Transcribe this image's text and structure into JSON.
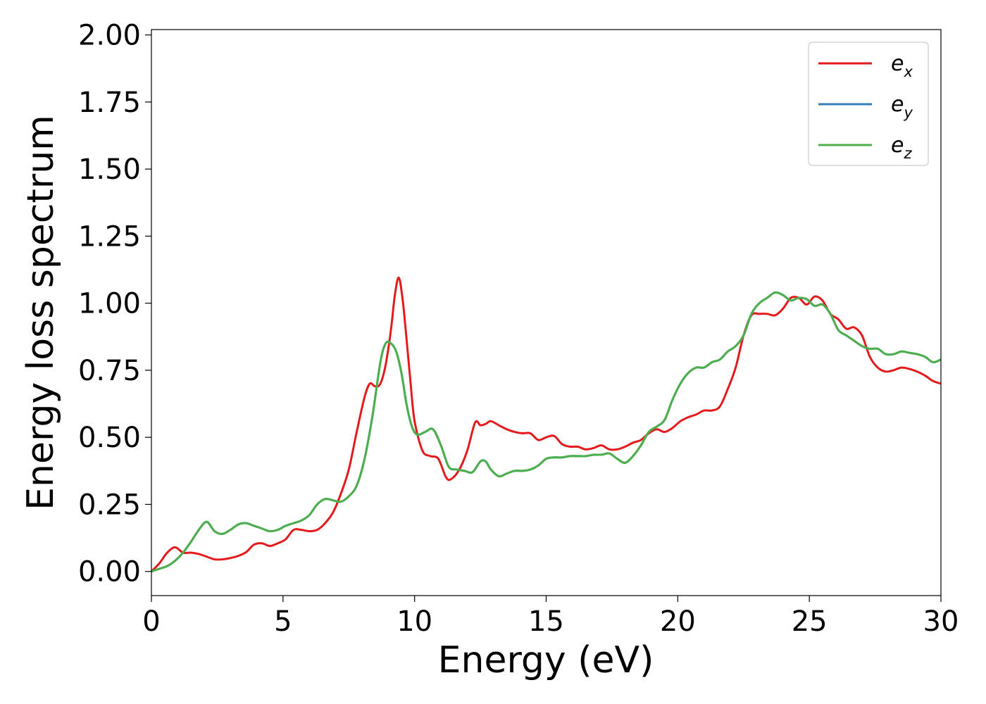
{
  "chart_data": {
    "type": "line",
    "xlabel": "Energy (eV)",
    "ylabel": "Energy loss spectrum",
    "xlim": [
      0,
      30
    ],
    "ylim": [
      -0.09,
      2.02
    ],
    "x_ticks": [
      "0",
      "5",
      "10",
      "15",
      "20",
      "25",
      "30"
    ],
    "x_tick_values": [
      0,
      5,
      10,
      15,
      20,
      25,
      30
    ],
    "y_ticks": [
      "0.00",
      "0.25",
      "0.50",
      "0.75",
      "1.00",
      "1.25",
      "1.50",
      "1.75",
      "2.00"
    ],
    "y_tick_values": [
      0,
      0.25,
      0.5,
      0.75,
      1.0,
      1.25,
      1.5,
      1.75,
      2.0
    ],
    "grid": false,
    "legend_position": "top-right",
    "series": [
      {
        "name_main": "e",
        "name_sub": "x",
        "color": "#e41a1c",
        "x": [
          0,
          0.3,
          0.6,
          0.9,
          1.2,
          1.5,
          1.8,
          2.1,
          2.4,
          2.7,
          3.0,
          3.3,
          3.6,
          3.9,
          4.2,
          4.5,
          4.8,
          5.1,
          5.4,
          5.7,
          6.0,
          6.3,
          6.6,
          6.9,
          7.2,
          7.5,
          7.8,
          8.1,
          8.3,
          8.5,
          8.7,
          8.9,
          9.1,
          9.25,
          9.4,
          9.55,
          9.7,
          9.85,
          10.0,
          10.3,
          10.6,
          10.9,
          11.2,
          11.4,
          11.7,
          12.0,
          12.3,
          12.5,
          12.7,
          12.9,
          13.2,
          13.5,
          13.8,
          14.1,
          14.4,
          14.7,
          15.0,
          15.3,
          15.6,
          15.9,
          16.2,
          16.5,
          16.8,
          17.1,
          17.4,
          17.7,
          18.0,
          18.3,
          18.6,
          18.9,
          19.2,
          19.5,
          19.8,
          20.1,
          20.4,
          20.7,
          21.0,
          21.3,
          21.6,
          21.9,
          22.2,
          22.5,
          22.8,
          23.1,
          23.4,
          23.7,
          24.0,
          24.3,
          24.6,
          24.9,
          25.2,
          25.5,
          25.8,
          26.1,
          26.4,
          26.7,
          27.0,
          27.3,
          27.6,
          27.9,
          28.2,
          28.5,
          28.8,
          29.1,
          29.4,
          29.7,
          30.0
        ],
        "y": [
          0.0,
          0.03,
          0.07,
          0.09,
          0.07,
          0.07,
          0.065,
          0.055,
          0.045,
          0.045,
          0.05,
          0.058,
          0.072,
          0.1,
          0.105,
          0.095,
          0.105,
          0.12,
          0.155,
          0.155,
          0.15,
          0.155,
          0.18,
          0.22,
          0.29,
          0.38,
          0.52,
          0.65,
          0.7,
          0.69,
          0.7,
          0.77,
          0.9,
          1.03,
          1.095,
          1.01,
          0.86,
          0.7,
          0.56,
          0.45,
          0.43,
          0.42,
          0.35,
          0.345,
          0.38,
          0.45,
          0.555,
          0.545,
          0.55,
          0.56,
          0.545,
          0.53,
          0.52,
          0.515,
          0.515,
          0.49,
          0.5,
          0.505,
          0.475,
          0.465,
          0.465,
          0.455,
          0.46,
          0.47,
          0.455,
          0.455,
          0.465,
          0.48,
          0.49,
          0.515,
          0.53,
          0.52,
          0.535,
          0.56,
          0.575,
          0.585,
          0.6,
          0.6,
          0.615,
          0.68,
          0.76,
          0.88,
          0.955,
          0.96,
          0.96,
          0.955,
          0.98,
          1.02,
          1.02,
          0.995,
          1.025,
          1.01,
          0.96,
          0.94,
          0.905,
          0.91,
          0.88,
          0.8,
          0.76,
          0.745,
          0.75,
          0.76,
          0.755,
          0.745,
          0.73,
          0.71,
          0.7
        ]
      },
      {
        "name_main": "e",
        "name_sub": "y",
        "color": "#377eb8",
        "x": [
          0,
          0.3,
          0.6,
          0.9,
          1.2,
          1.5,
          1.8,
          2.1,
          2.4,
          2.7,
          3.0,
          3.3,
          3.6,
          3.9,
          4.2,
          4.5,
          4.8,
          5.1,
          5.4,
          5.7,
          6.0,
          6.3,
          6.6,
          6.9,
          7.2,
          7.5,
          7.8,
          8.1,
          8.4,
          8.7,
          8.9,
          9.1,
          9.3,
          9.5,
          9.7,
          9.9,
          10.1,
          10.4,
          10.7,
          11.0,
          11.3,
          11.6,
          11.9,
          12.2,
          12.5,
          12.7,
          12.9,
          13.2,
          13.5,
          13.8,
          14.1,
          14.4,
          14.7,
          15.0,
          15.3,
          15.6,
          15.9,
          16.2,
          16.5,
          16.8,
          17.1,
          17.4,
          17.7,
          18.0,
          18.3,
          18.6,
          18.9,
          19.2,
          19.5,
          19.8,
          20.1,
          20.4,
          20.7,
          21.0,
          21.3,
          21.6,
          21.9,
          22.2,
          22.5,
          22.8,
          23.1,
          23.4,
          23.7,
          24.0,
          24.3,
          24.6,
          24.9,
          25.2,
          25.5,
          25.8,
          26.1,
          26.4,
          26.7,
          27.0,
          27.3,
          27.6,
          27.9,
          28.2,
          28.5,
          28.8,
          29.1,
          29.4,
          29.7,
          30.0
        ],
        "y": [
          0.0,
          0.01,
          0.02,
          0.04,
          0.07,
          0.11,
          0.155,
          0.185,
          0.15,
          0.14,
          0.155,
          0.175,
          0.18,
          0.17,
          0.16,
          0.15,
          0.155,
          0.17,
          0.18,
          0.19,
          0.21,
          0.25,
          0.27,
          0.265,
          0.26,
          0.28,
          0.32,
          0.42,
          0.58,
          0.78,
          0.85,
          0.85,
          0.82,
          0.74,
          0.62,
          0.54,
          0.51,
          0.52,
          0.53,
          0.47,
          0.39,
          0.38,
          0.375,
          0.37,
          0.41,
          0.41,
          0.38,
          0.355,
          0.365,
          0.375,
          0.375,
          0.38,
          0.395,
          0.42,
          0.425,
          0.425,
          0.43,
          0.43,
          0.43,
          0.435,
          0.435,
          0.44,
          0.42,
          0.405,
          0.43,
          0.47,
          0.52,
          0.54,
          0.565,
          0.64,
          0.7,
          0.74,
          0.76,
          0.76,
          0.78,
          0.79,
          0.82,
          0.84,
          0.88,
          0.96,
          1.0,
          1.02,
          1.04,
          1.03,
          1.01,
          1.02,
          1.015,
          0.99,
          0.995,
          0.96,
          0.9,
          0.88,
          0.86,
          0.84,
          0.83,
          0.83,
          0.81,
          0.81,
          0.82,
          0.815,
          0.81,
          0.8,
          0.78,
          0.79
        ]
      },
      {
        "name_main": "e",
        "name_sub": "z",
        "color": "#4daf4a",
        "x": [
          0,
          0.3,
          0.6,
          0.9,
          1.2,
          1.5,
          1.8,
          2.1,
          2.4,
          2.7,
          3.0,
          3.3,
          3.6,
          3.9,
          4.2,
          4.5,
          4.8,
          5.1,
          5.4,
          5.7,
          6.0,
          6.3,
          6.6,
          6.9,
          7.2,
          7.5,
          7.8,
          8.1,
          8.4,
          8.7,
          8.9,
          9.1,
          9.3,
          9.5,
          9.7,
          9.9,
          10.1,
          10.4,
          10.7,
          11.0,
          11.3,
          11.6,
          11.9,
          12.2,
          12.5,
          12.7,
          12.9,
          13.2,
          13.5,
          13.8,
          14.1,
          14.4,
          14.7,
          15.0,
          15.3,
          15.6,
          15.9,
          16.2,
          16.5,
          16.8,
          17.1,
          17.4,
          17.7,
          18.0,
          18.3,
          18.6,
          18.9,
          19.2,
          19.5,
          19.8,
          20.1,
          20.4,
          20.7,
          21.0,
          21.3,
          21.6,
          21.9,
          22.2,
          22.5,
          22.8,
          23.1,
          23.4,
          23.7,
          24.0,
          24.3,
          24.6,
          24.9,
          25.2,
          25.5,
          25.8,
          26.1,
          26.4,
          26.7,
          27.0,
          27.3,
          27.6,
          27.9,
          28.2,
          28.5,
          28.8,
          29.1,
          29.4,
          29.7,
          30.0
        ],
        "y": [
          0.0,
          0.01,
          0.02,
          0.04,
          0.07,
          0.11,
          0.155,
          0.185,
          0.15,
          0.14,
          0.155,
          0.175,
          0.18,
          0.17,
          0.16,
          0.15,
          0.155,
          0.17,
          0.18,
          0.19,
          0.21,
          0.25,
          0.27,
          0.265,
          0.26,
          0.28,
          0.32,
          0.42,
          0.58,
          0.78,
          0.85,
          0.85,
          0.82,
          0.74,
          0.62,
          0.54,
          0.51,
          0.52,
          0.53,
          0.47,
          0.39,
          0.38,
          0.375,
          0.37,
          0.41,
          0.41,
          0.38,
          0.355,
          0.365,
          0.375,
          0.375,
          0.38,
          0.395,
          0.42,
          0.425,
          0.425,
          0.43,
          0.43,
          0.43,
          0.435,
          0.435,
          0.44,
          0.42,
          0.405,
          0.43,
          0.47,
          0.52,
          0.54,
          0.565,
          0.64,
          0.7,
          0.74,
          0.76,
          0.76,
          0.78,
          0.79,
          0.82,
          0.84,
          0.88,
          0.96,
          1.0,
          1.02,
          1.04,
          1.03,
          1.01,
          1.02,
          1.015,
          0.99,
          0.995,
          0.96,
          0.9,
          0.88,
          0.86,
          0.84,
          0.83,
          0.83,
          0.81,
          0.81,
          0.82,
          0.815,
          0.81,
          0.8,
          0.78,
          0.79
        ]
      }
    ]
  }
}
